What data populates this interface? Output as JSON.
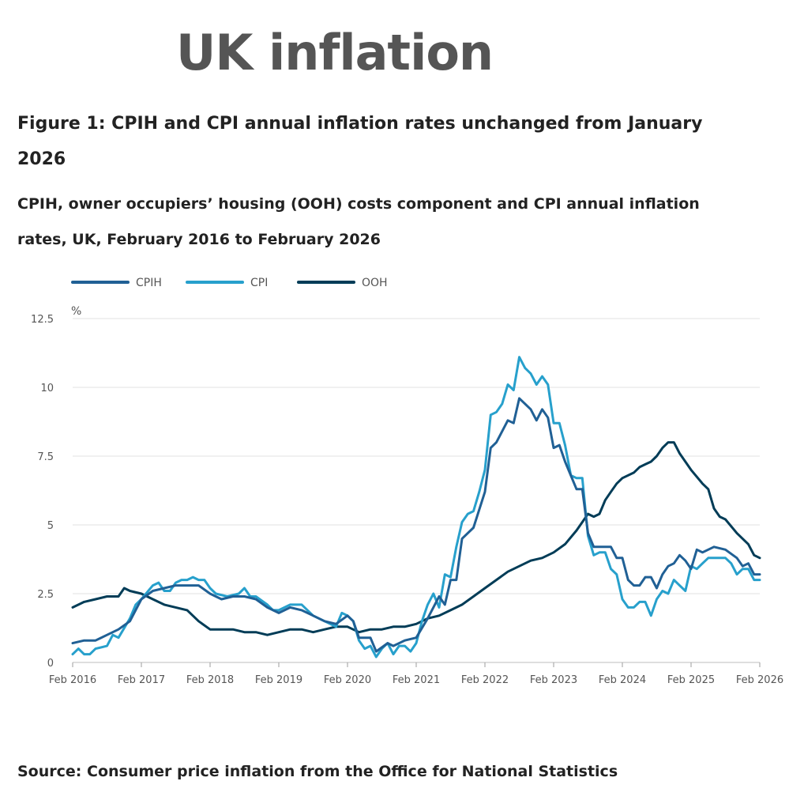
{
  "banner_title": "UK inflation",
  "figure_title": "Figure 1: CPIH and CPI annual inflation rates unchanged from January 2026",
  "figure_subtitle": "CPIH, owner occupiers’ housing (OOH) costs component and CPI annual inflation rates, UK, February 2016 to February 2026",
  "source": "Source: Consumer price inflation from the Office for National Statistics",
  "colors": {
    "CPIH": "#206095",
    "CPI": "#27a0cc",
    "OOH": "#003c57",
    "grid": "#e0e0e0",
    "axis_text": "#555555"
  },
  "chart_data": {
    "type": "line",
    "title": "CPIH and CPI annual inflation rates unchanged from January 2026",
    "ylabel": "%",
    "xlabel": "",
    "ylim": [
      0,
      12.5
    ],
    "yticks": [
      0,
      2.5,
      5,
      7.5,
      10,
      12.5
    ],
    "ytick_labels": [
      "0",
      "2.5",
      "5",
      "7.5",
      "10",
      "12.5"
    ],
    "xticks": [
      0,
      12,
      24,
      36,
      48,
      60,
      72,
      84,
      96,
      108,
      120
    ],
    "xtick_labels": [
      "Feb 2016",
      "Feb 2017",
      "Feb 2018",
      "Feb 2019",
      "Feb 2020",
      "Feb 2021",
      "Feb 2022",
      "Feb 2023",
      "Feb 2024",
      "Feb 2025",
      "Feb 2026"
    ],
    "x_note": "x = months since February 2016",
    "grid": true,
    "legend": "top-left",
    "series": [
      {
        "name": "CPIH",
        "points": [
          [
            0,
            0.7
          ],
          [
            2,
            0.8
          ],
          [
            4,
            0.8
          ],
          [
            6,
            1.0
          ],
          [
            8,
            1.2
          ],
          [
            10,
            1.5
          ],
          [
            12,
            2.3
          ],
          [
            14,
            2.6
          ],
          [
            16,
            2.7
          ],
          [
            18,
            2.8
          ],
          [
            20,
            2.8
          ],
          [
            22,
            2.8
          ],
          [
            24,
            2.5
          ],
          [
            26,
            2.3
          ],
          [
            28,
            2.4
          ],
          [
            30,
            2.4
          ],
          [
            32,
            2.3
          ],
          [
            34,
            2.0
          ],
          [
            36,
            1.8
          ],
          [
            38,
            2.0
          ],
          [
            40,
            1.9
          ],
          [
            42,
            1.7
          ],
          [
            44,
            1.5
          ],
          [
            46,
            1.4
          ],
          [
            48,
            1.7
          ],
          [
            49,
            1.5
          ],
          [
            50,
            0.9
          ],
          [
            52,
            0.9
          ],
          [
            53,
            0.4
          ],
          [
            55,
            0.7
          ],
          [
            56,
            0.6
          ],
          [
            58,
            0.8
          ],
          [
            60,
            0.9
          ],
          [
            62,
            1.6
          ],
          [
            64,
            2.4
          ],
          [
            65,
            2.1
          ],
          [
            66,
            3.0
          ],
          [
            67,
            3.0
          ],
          [
            68,
            4.5
          ],
          [
            70,
            4.9
          ],
          [
            72,
            6.2
          ],
          [
            73,
            7.8
          ],
          [
            74,
            8.0
          ],
          [
            76,
            8.8
          ],
          [
            77,
            8.7
          ],
          [
            78,
            9.6
          ],
          [
            80,
            9.2
          ],
          [
            81,
            8.8
          ],
          [
            82,
            9.2
          ],
          [
            83,
            8.9
          ],
          [
            84,
            7.8
          ],
          [
            85,
            7.9
          ],
          [
            86,
            7.3
          ],
          [
            88,
            6.3
          ],
          [
            89,
            6.3
          ],
          [
            90,
            4.7
          ],
          [
            91,
            4.2
          ],
          [
            92,
            4.2
          ],
          [
            94,
            4.2
          ],
          [
            95,
            3.8
          ],
          [
            96,
            3.8
          ],
          [
            97,
            3.0
          ],
          [
            98,
            2.8
          ],
          [
            99,
            2.8
          ],
          [
            100,
            3.1
          ],
          [
            101,
            3.1
          ],
          [
            102,
            2.7
          ],
          [
            103,
            3.2
          ],
          [
            104,
            3.5
          ],
          [
            105,
            3.6
          ],
          [
            106,
            3.9
          ],
          [
            107,
            3.7
          ],
          [
            108,
            3.4
          ],
          [
            109,
            4.1
          ],
          [
            110,
            4.0
          ],
          [
            112,
            4.2
          ],
          [
            114,
            4.1
          ],
          [
            116,
            3.8
          ],
          [
            117,
            3.5
          ],
          [
            118,
            3.6
          ],
          [
            119,
            3.2
          ],
          [
            120,
            3.2
          ]
        ]
      },
      {
        "name": "CPI",
        "points": [
          [
            0,
            0.3
          ],
          [
            1,
            0.5
          ],
          [
            2,
            0.3
          ],
          [
            3,
            0.3
          ],
          [
            4,
            0.5
          ],
          [
            6,
            0.6
          ],
          [
            7,
            1.0
          ],
          [
            8,
            0.9
          ],
          [
            10,
            1.6
          ],
          [
            11,
            2.1
          ],
          [
            12,
            2.3
          ],
          [
            14,
            2.8
          ],
          [
            15,
            2.9
          ],
          [
            16,
            2.6
          ],
          [
            17,
            2.6
          ],
          [
            18,
            2.9
          ],
          [
            19,
            3.0
          ],
          [
            20,
            3.0
          ],
          [
            21,
            3.1
          ],
          [
            22,
            3.0
          ],
          [
            23,
            3.0
          ],
          [
            24,
            2.7
          ],
          [
            25,
            2.5
          ],
          [
            27,
            2.4
          ],
          [
            29,
            2.5
          ],
          [
            30,
            2.7
          ],
          [
            31,
            2.4
          ],
          [
            32,
            2.4
          ],
          [
            34,
            2.1
          ],
          [
            35,
            1.9
          ],
          [
            36,
            1.9
          ],
          [
            38,
            2.1
          ],
          [
            40,
            2.1
          ],
          [
            42,
            1.7
          ],
          [
            44,
            1.5
          ],
          [
            46,
            1.3
          ],
          [
            47,
            1.8
          ],
          [
            48,
            1.7
          ],
          [
            49,
            1.5
          ],
          [
            50,
            0.8
          ],
          [
            51,
            0.5
          ],
          [
            52,
            0.6
          ],
          [
            53,
            0.2
          ],
          [
            54,
            0.5
          ],
          [
            55,
            0.7
          ],
          [
            56,
            0.3
          ],
          [
            57,
            0.6
          ],
          [
            58,
            0.6
          ],
          [
            59,
            0.4
          ],
          [
            60,
            0.7
          ],
          [
            61,
            1.5
          ],
          [
            62,
            2.1
          ],
          [
            63,
            2.5
          ],
          [
            64,
            2.0
          ],
          [
            65,
            3.2
          ],
          [
            66,
            3.1
          ],
          [
            67,
            4.2
          ],
          [
            68,
            5.1
          ],
          [
            69,
            5.4
          ],
          [
            70,
            5.5
          ],
          [
            71,
            6.2
          ],
          [
            72,
            7.0
          ],
          [
            73,
            9.0
          ],
          [
            74,
            9.1
          ],
          [
            75,
            9.4
          ],
          [
            76,
            10.1
          ],
          [
            77,
            9.9
          ],
          [
            78,
            11.1
          ],
          [
            79,
            10.7
          ],
          [
            80,
            10.5
          ],
          [
            81,
            10.1
          ],
          [
            82,
            10.4
          ],
          [
            83,
            10.1
          ],
          [
            84,
            8.7
          ],
          [
            85,
            8.7
          ],
          [
            86,
            7.9
          ],
          [
            87,
            6.8
          ],
          [
            88,
            6.7
          ],
          [
            89,
            6.7
          ],
          [
            90,
            4.6
          ],
          [
            91,
            3.9
          ],
          [
            92,
            4.0
          ],
          [
            93,
            4.0
          ],
          [
            94,
            3.4
          ],
          [
            95,
            3.2
          ],
          [
            96,
            2.3
          ],
          [
            97,
            2.0
          ],
          [
            98,
            2.0
          ],
          [
            99,
            2.2
          ],
          [
            100,
            2.2
          ],
          [
            101,
            1.7
          ],
          [
            102,
            2.3
          ],
          [
            103,
            2.6
          ],
          [
            104,
            2.5
          ],
          [
            105,
            3.0
          ],
          [
            106,
            2.8
          ],
          [
            107,
            2.6
          ],
          [
            108,
            3.5
          ],
          [
            109,
            3.4
          ],
          [
            110,
            3.6
          ],
          [
            111,
            3.8
          ],
          [
            113,
            3.8
          ],
          [
            114,
            3.8
          ],
          [
            115,
            3.6
          ],
          [
            116,
            3.2
          ],
          [
            117,
            3.4
          ],
          [
            118,
            3.4
          ],
          [
            119,
            3.0
          ],
          [
            120,
            3.0
          ]
        ]
      },
      {
        "name": "OOH",
        "points": [
          [
            0,
            2.0
          ],
          [
            2,
            2.2
          ],
          [
            4,
            2.3
          ],
          [
            6,
            2.4
          ],
          [
            8,
            2.4
          ],
          [
            9,
            2.7
          ],
          [
            10,
            2.6
          ],
          [
            12,
            2.5
          ],
          [
            14,
            2.3
          ],
          [
            16,
            2.1
          ],
          [
            18,
            2.0
          ],
          [
            20,
            1.9
          ],
          [
            22,
            1.5
          ],
          [
            24,
            1.2
          ],
          [
            26,
            1.2
          ],
          [
            28,
            1.2
          ],
          [
            30,
            1.1
          ],
          [
            32,
            1.1
          ],
          [
            34,
            1.0
          ],
          [
            36,
            1.1
          ],
          [
            38,
            1.2
          ],
          [
            40,
            1.2
          ],
          [
            42,
            1.1
          ],
          [
            44,
            1.2
          ],
          [
            46,
            1.3
          ],
          [
            48,
            1.3
          ],
          [
            50,
            1.1
          ],
          [
            52,
            1.2
          ],
          [
            54,
            1.2
          ],
          [
            56,
            1.3
          ],
          [
            58,
            1.3
          ],
          [
            60,
            1.4
          ],
          [
            62,
            1.6
          ],
          [
            64,
            1.7
          ],
          [
            66,
            1.9
          ],
          [
            68,
            2.1
          ],
          [
            70,
            2.4
          ],
          [
            72,
            2.7
          ],
          [
            74,
            3.0
          ],
          [
            76,
            3.3
          ],
          [
            78,
            3.5
          ],
          [
            80,
            3.7
          ],
          [
            82,
            3.8
          ],
          [
            84,
            4.0
          ],
          [
            86,
            4.3
          ],
          [
            88,
            4.8
          ],
          [
            90,
            5.4
          ],
          [
            91,
            5.3
          ],
          [
            92,
            5.4
          ],
          [
            93,
            5.9
          ],
          [
            94,
            6.2
          ],
          [
            95,
            6.5
          ],
          [
            96,
            6.7
          ],
          [
            98,
            6.9
          ],
          [
            99,
            7.1
          ],
          [
            100,
            7.2
          ],
          [
            101,
            7.3
          ],
          [
            102,
            7.5
          ],
          [
            103,
            7.8
          ],
          [
            104,
            8.0
          ],
          [
            105,
            8.0
          ],
          [
            106,
            7.6
          ],
          [
            107,
            7.3
          ],
          [
            108,
            7.0
          ],
          [
            110,
            6.5
          ],
          [
            111,
            6.3
          ],
          [
            112,
            5.6
          ],
          [
            113,
            5.3
          ],
          [
            114,
            5.2
          ],
          [
            116,
            4.7
          ],
          [
            118,
            4.3
          ],
          [
            119,
            3.9
          ],
          [
            120,
            3.8
          ]
        ]
      }
    ]
  }
}
